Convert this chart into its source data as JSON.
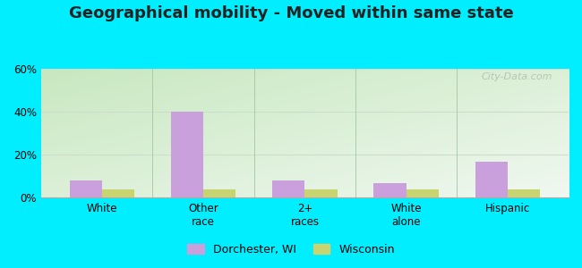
{
  "title": "Geographical mobility - Moved within same state",
  "categories": [
    "White",
    "Other\nrace",
    "2+\nraces",
    "White\nalone",
    "Hispanic"
  ],
  "dorchester_values": [
    8,
    40,
    8,
    7,
    17
  ],
  "wisconsin_values": [
    4,
    4,
    4,
    4,
    4
  ],
  "bar_color_dorchester": "#c9a0dc",
  "bar_color_wisconsin": "#c8d470",
  "ylim": [
    0,
    60
  ],
  "yticks": [
    0,
    20,
    40,
    60
  ],
  "ytick_labels": [
    "0%",
    "20%",
    "40%",
    "60%"
  ],
  "legend_label_dorchester": "Dorchester, WI",
  "legend_label_wisconsin": "Wisconsin",
  "bg_outer": "#00eeff",
  "title_fontsize": 13,
  "tick_fontsize": 8.5,
  "legend_fontsize": 9,
  "bar_width": 0.32,
  "watermark": "City-Data.com",
  "grid_color": "#ccddcc",
  "separator_color": "#aaccaa",
  "grad_bottom_left": "#c8e8c0",
  "grad_top_right": "#f0f8f0"
}
